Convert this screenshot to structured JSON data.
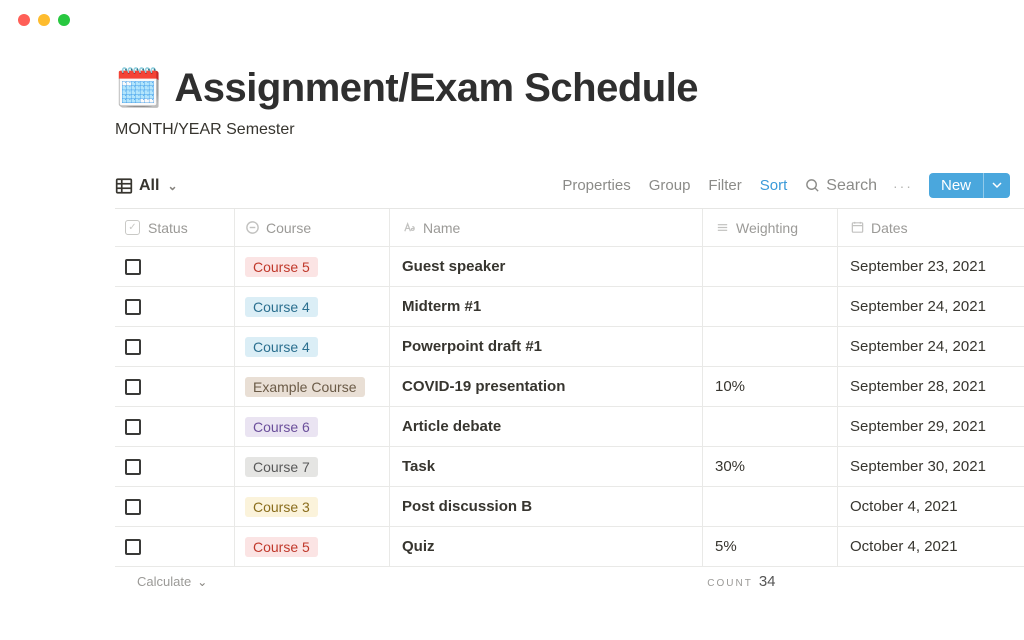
{
  "window": {
    "dots": [
      "red",
      "yellow",
      "green"
    ]
  },
  "header": {
    "emoji": "🗓️",
    "title": "Assignment/Exam Schedule",
    "subtitle": "MONTH/YEAR Semester"
  },
  "toolbar": {
    "view_label": "All",
    "properties": "Properties",
    "group": "Group",
    "filter": "Filter",
    "sort": "Sort",
    "search": "Search",
    "more": "···",
    "new_label": "New"
  },
  "columns": {
    "status": "Status",
    "course": "Course",
    "name": "Name",
    "weighting": "Weighting",
    "dates": "Dates"
  },
  "course_colors": {
    "Course 5": {
      "bg": "#fbe4e4",
      "fg": "#c0392b"
    },
    "Course 4": {
      "bg": "#dbeef6",
      "fg": "#2b6f8f"
    },
    "Example Course": {
      "bg": "#e9dfd5",
      "fg": "#6b5b47"
    },
    "Course 6": {
      "bg": "#eae4f2",
      "fg": "#6b4f9b"
    },
    "Course 7": {
      "bg": "#e5e5e3",
      "fg": "#595959"
    },
    "Course 3": {
      "bg": "#fbf3db",
      "fg": "#8a6d1d"
    }
  },
  "rows": [
    {
      "course": "Course 5",
      "name": "Guest speaker",
      "weighting": "",
      "date": "September 23, 2021"
    },
    {
      "course": "Course 4",
      "name": "Midterm #1",
      "weighting": "",
      "date": "September 24, 2021"
    },
    {
      "course": "Course 4",
      "name": "Powerpoint draft #1",
      "weighting": "",
      "date": "September 24, 2021"
    },
    {
      "course": "Example Course",
      "name": "COVID-19 presentation",
      "weighting": "10%",
      "date": "September 28, 2021"
    },
    {
      "course": "Course 6",
      "name": "Article debate",
      "weighting": "",
      "date": "September 29, 2021"
    },
    {
      "course": "Course 7",
      "name": "Task",
      "weighting": "30%",
      "date": "September 30, 2021"
    },
    {
      "course": "Course 3",
      "name": "Post discussion B",
      "weighting": "",
      "date": "October 4, 2021"
    },
    {
      "course": "Course 5",
      "name": "Quiz",
      "weighting": "5%",
      "date": "October 4, 2021"
    }
  ],
  "footer": {
    "calculate": "Calculate",
    "count_label": "COUNT",
    "count_value": "34"
  }
}
